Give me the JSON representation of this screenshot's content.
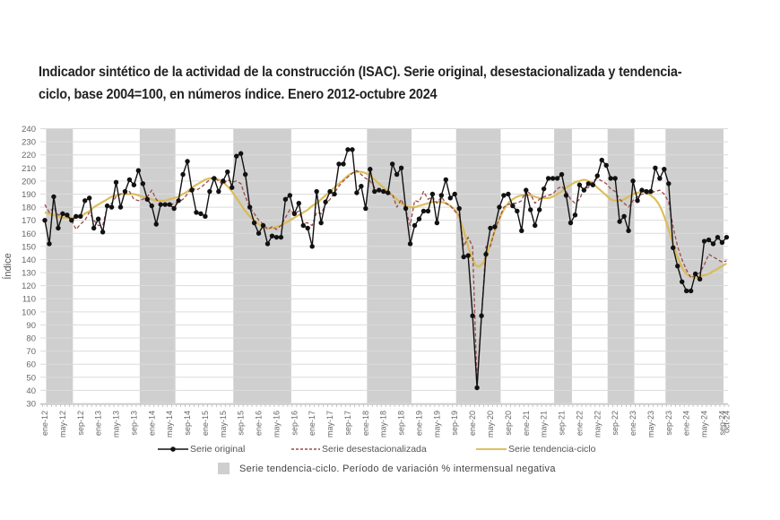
{
  "title": "Indicador sintético de la actividad de la construcción (ISAC). Serie original, desestacionalizada y tendencia-ciclo, base 2004=100, en números índice. Enero 2012-octubre 2024",
  "chart_data": {
    "type": "line",
    "title": "Indicador sintético de la actividad de la construcción (ISAC). Serie original, desestacionalizada y tendencia-ciclo, base 2004=100, en números índice. Enero 2012-octubre 2024",
    "xlabel": "",
    "ylabel": "Índice",
    "ylim": [
      30,
      240
    ],
    "yticks": [
      30,
      40,
      50,
      60,
      70,
      80,
      90,
      100,
      110,
      120,
      130,
      140,
      150,
      160,
      170,
      180,
      190,
      200,
      210,
      220,
      230,
      240
    ],
    "grid": true,
    "start_month": "2012-01",
    "end_month": "2024-10",
    "xtick_labels": [
      "ene-12",
      "may-12",
      "sep-12",
      "ene-13",
      "may-13",
      "sep-13",
      "ene-14",
      "may-14",
      "sep-14",
      "ene-15",
      "may-15",
      "sep-15",
      "ene-16",
      "may-16",
      "sep-16",
      "ene-17",
      "may-17",
      "sep-17",
      "ene-18",
      "may-18",
      "sep-18",
      "ene-19",
      "may-19",
      "sep-19",
      "ene-20",
      "may-20",
      "sep-20",
      "ene-21",
      "may-21",
      "sep-21",
      "ene-22",
      "may-22",
      "sep-22",
      "ene-23",
      "may-23",
      "sep-23",
      "ene-24",
      "may-24",
      "sep-24",
      "oct-24"
    ],
    "series": [
      {
        "name": "Serie original",
        "style": "line-markers",
        "color": "#111111",
        "values": [
          170,
          152,
          188,
          164,
          175,
          174,
          170,
          173,
          173,
          185,
          187,
          164,
          171,
          161,
          181,
          180,
          199,
          180,
          192,
          201,
          197,
          208,
          198,
          186,
          181,
          167,
          182,
          182,
          182,
          179,
          185,
          205,
          215,
          193,
          176,
          175,
          173,
          192,
          202,
          192,
          200,
          207,
          195,
          219,
          221,
          205,
          180,
          168,
          160,
          166,
          152,
          158,
          157,
          157,
          186,
          189,
          175,
          183,
          166,
          164,
          150,
          192,
          168,
          184,
          192,
          190,
          213,
          213,
          224,
          224,
          191,
          196,
          179,
          209,
          192,
          193,
          192,
          191,
          213,
          205,
          210,
          179,
          152,
          166,
          171,
          177,
          177,
          190,
          168,
          189,
          201,
          187,
          190,
          179,
          142,
          143,
          97,
          42,
          97,
          144,
          164,
          165,
          180,
          189,
          190,
          181,
          177,
          162,
          193,
          178,
          166,
          178,
          194,
          202,
          202,
          202,
          205,
          189,
          168,
          174,
          197,
          193,
          198,
          197,
          204,
          216,
          212,
          202,
          202,
          169,
          173,
          162,
          200,
          185,
          193,
          192,
          192,
          210,
          202,
          209,
          198,
          149,
          135,
          123,
          116,
          116,
          129,
          125,
          154,
          155,
          152,
          157,
          153,
          157
        ]
      },
      {
        "name": "Serie desestacionalizada",
        "style": "dashed",
        "color": "#9c4a4a",
        "values": [
          182,
          176,
          180,
          174,
          175,
          173,
          170,
          163,
          167,
          170,
          176,
          170,
          166,
          166,
          180,
          183,
          188,
          190,
          190,
          192,
          186,
          185,
          186,
          188,
          193,
          186,
          183,
          182,
          181,
          183,
          184,
          186,
          190,
          195,
          193,
          195,
          198,
          201,
          203,
          200,
          197,
          201,
          199,
          200,
          198,
          188,
          180,
          175,
          170,
          167,
          163,
          165,
          163,
          166,
          172,
          178,
          175,
          177,
          168,
          168,
          166,
          176,
          175,
          182,
          186,
          191,
          196,
          200,
          203,
          206,
          208,
          205,
          202,
          200,
          195,
          193,
          191,
          190,
          190,
          180,
          186,
          178,
          166,
          185,
          184,
          192,
          186,
          188,
          183,
          188,
          183,
          181,
          177,
          174,
          150,
          157,
          150,
          45,
          97,
          150,
          150,
          163,
          171,
          180,
          182,
          183,
          183,
          185,
          193,
          190,
          183,
          186,
          188,
          189,
          190,
          194,
          196,
          192,
          186,
          183,
          186,
          194,
          195,
          200,
          202,
          200,
          198,
          194,
          192,
          186,
          183,
          180,
          185,
          188,
          190,
          190,
          191,
          192,
          193,
          190,
          184,
          165,
          150,
          140,
          132,
          126,
          128,
          130,
          136,
          144,
          142,
          140,
          138,
          139
        ]
      },
      {
        "name": "Serie tendencia-ciclo",
        "style": "smooth-line",
        "color": "#d9b84a",
        "values": [
          176,
          175,
          174,
          173,
          172,
          172,
          172,
          172,
          173,
          175,
          177,
          180,
          182,
          184,
          186,
          188,
          189,
          190,
          190,
          190,
          190,
          189,
          188,
          187,
          186,
          185,
          185,
          185,
          186,
          187,
          188,
          190,
          192,
          195,
          197,
          199,
          201,
          202,
          202,
          201,
          199,
          196,
          192,
          187,
          182,
          177,
          173,
          170,
          167,
          165,
          164,
          164,
          165,
          166,
          168,
          170,
          172,
          174,
          176,
          178,
          181,
          183,
          186,
          189,
          192,
          195,
          198,
          201,
          204,
          206,
          207,
          207,
          206,
          204,
          201,
          198,
          195,
          192,
          189,
          186,
          183,
          181,
          180,
          180,
          181,
          182,
          183,
          184,
          184,
          184,
          183,
          181,
          178,
          172,
          162,
          150,
          140,
          135,
          136,
          142,
          152,
          162,
          171,
          178,
          183,
          186,
          188,
          189,
          189,
          189,
          188,
          187,
          187,
          187,
          188,
          190,
          192,
          195,
          197,
          199,
          200,
          201,
          200,
          198,
          195,
          192,
          189,
          186,
          185,
          185,
          186,
          188,
          190,
          191,
          192,
          191,
          189,
          186,
          181,
          173,
          163,
          152,
          142,
          134,
          129,
          127,
          126,
          127,
          128,
          129,
          131,
          133,
          135,
          137
        ]
      }
    ],
    "shaded_periods": {
      "label": "Serie tendencia-ciclo. Período de variación % intermensual negativa",
      "color": "#cfcfcf",
      "ranges": [
        [
          "2012-01",
          "2012-07"
        ],
        [
          "2013-10",
          "2014-06"
        ],
        [
          "2015-07",
          "2016-08"
        ],
        [
          "2018-01",
          "2018-11"
        ],
        [
          "2019-09",
          "2020-07"
        ],
        [
          "2021-07",
          "2021-11"
        ],
        [
          "2022-07",
          "2023-01"
        ],
        [
          "2023-08",
          "2024-09"
        ]
      ]
    },
    "legend": {
      "placement": "bottom",
      "entries": [
        "Serie original",
        "Serie desestacionalizada",
        "Serie tendencia-ciclo",
        "Serie tendencia-ciclo. Período de variación % intermensual negativa"
      ]
    }
  }
}
